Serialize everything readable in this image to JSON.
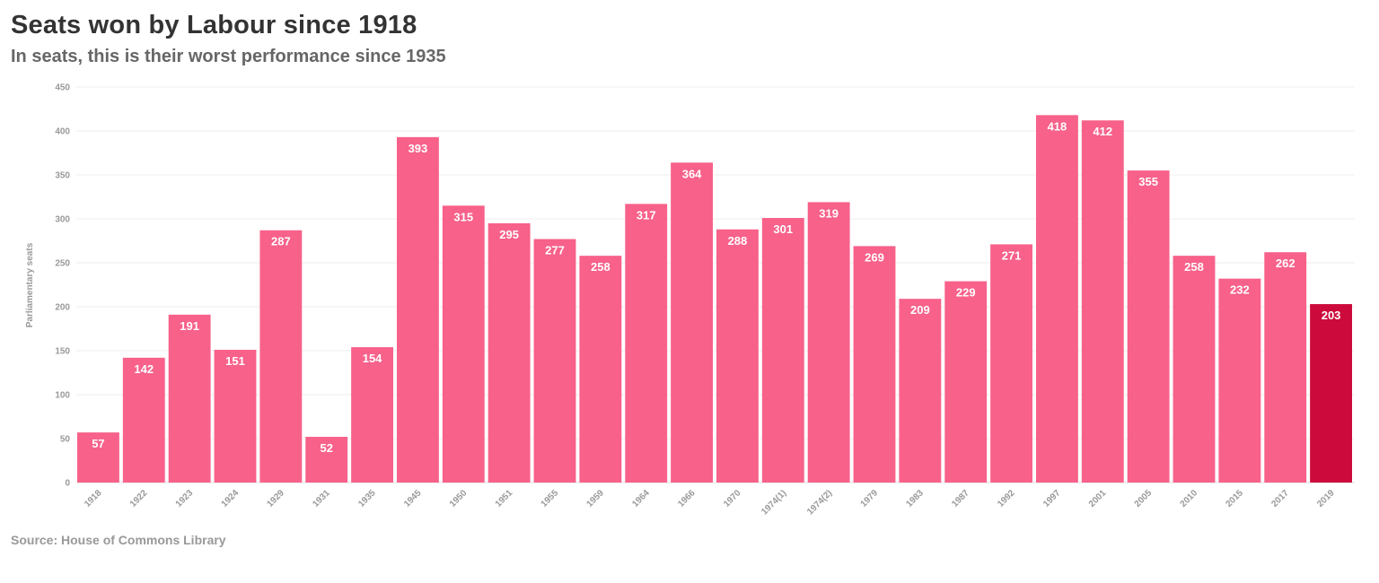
{
  "chart_data": {
    "type": "bar",
    "title": "Seats won by Labour since 1918",
    "subtitle": "In seats, this is their worst performance since 1935",
    "ylabel": "Parliamentary seats",
    "xlabel": "",
    "ylim": [
      0,
      450
    ],
    "yticks": [
      0,
      50,
      100,
      150,
      200,
      250,
      300,
      350,
      400,
      450
    ],
    "grid": true,
    "categories": [
      "1918",
      "1922",
      "1923",
      "1924",
      "1929",
      "1931",
      "1935",
      "1945",
      "1950",
      "1951",
      "1955",
      "1959",
      "1964",
      "1966",
      "1970",
      "1974(1)",
      "1974(2)",
      "1979",
      "1983",
      "1987",
      "1992",
      "1997",
      "2001",
      "2005",
      "2010",
      "2015",
      "2017",
      "2019"
    ],
    "values": [
      57,
      142,
      191,
      151,
      287,
      52,
      154,
      393,
      315,
      295,
      277,
      258,
      317,
      364,
      288,
      301,
      319,
      269,
      209,
      229,
      271,
      418,
      412,
      355,
      258,
      232,
      262,
      203
    ],
    "value_labels": [
      "57",
      "142",
      "191",
      "151",
      "287",
      "52",
      "154",
      "393",
      "315",
      "295",
      "277",
      "258",
      "317",
      "364",
      "288",
      "301",
      "319",
      "269",
      "209",
      "229",
      "271",
      "418",
      "412",
      "355",
      "258",
      "232",
      "262",
      "203"
    ],
    "highlight_index": 27,
    "colors": {
      "bar": "#f7618a",
      "highlight": "#cc0a3b",
      "grid": "#eeeeee"
    }
  },
  "source": "Source: House of Commons Library"
}
